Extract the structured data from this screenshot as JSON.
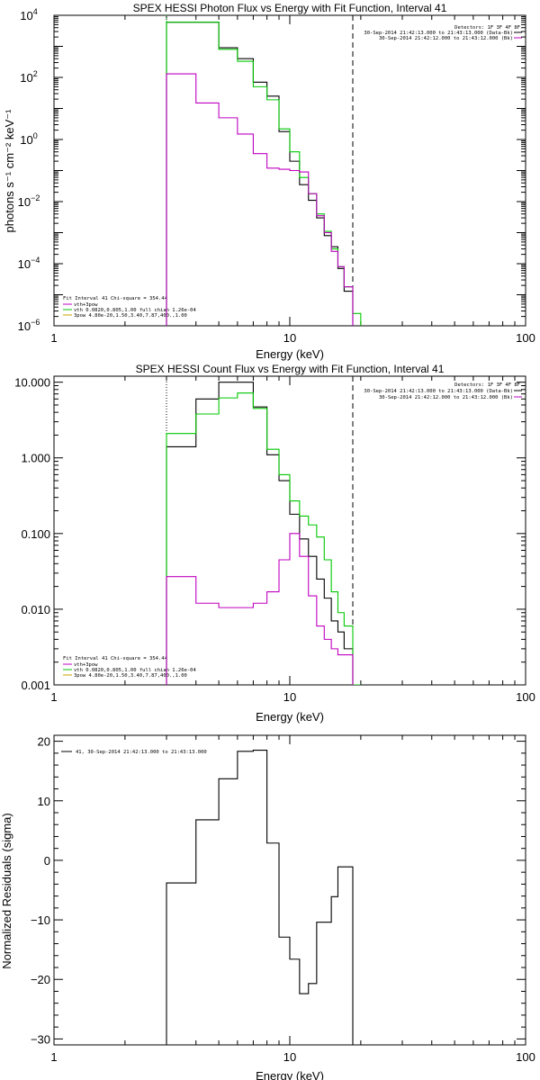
{
  "chart_data": [
    {
      "type": "line",
      "title": "SPEX HESSI Photon Flux vs Energy with Fit Function, Interval 41",
      "xlabel": "Energy (keV)",
      "ylabel": "photons s⁻¹ cm⁻² keV⁻¹",
      "xscale": "log",
      "yscale": "log",
      "xlim": [
        1,
        100
      ],
      "ylim": [
        1e-06,
        10000.0
      ],
      "x_ticks": [
        {
          "v": 1,
          "label": "1"
        },
        {
          "v": 10,
          "label": "10"
        },
        {
          "v": 100,
          "label": "100"
        }
      ],
      "y_ticks": [
        {
          "v": 1e-06,
          "base": "10",
          "exp": "−6"
        },
        {
          "v": 0.0001,
          "base": "10",
          "exp": "−4"
        },
        {
          "v": 0.01,
          "base": "10",
          "exp": "−2"
        },
        {
          "v": 1,
          "base": "10",
          "exp": "0"
        },
        {
          "v": 100.0,
          "base": "10",
          "exp": "2"
        },
        {
          "v": 10000.0,
          "base": "10",
          "exp": "4"
        }
      ],
      "legend_top": [
        "Detectors: 1F 3F 4F 8F",
        "30-Sep-2014 21:42:13.000 to 21:43:13.000 (Data-Bk)",
        "30-Sep-2014 21:42:12.000 to 21:43:12.000 (Bk)"
      ],
      "legend_bottom": [
        "Fit Interval 41   Chi-square = 354.44",
        "vth+3pow",
        "vth 0.0820,0.805,1.00  full chian 1.26e-04",
        "3pow 4.80e-20,1.50,3.40,7.87,400.,1.00"
      ],
      "vlines": [
        {
          "x": 3,
          "style": "dotted-green"
        },
        {
          "x": 18.5,
          "style": "dashed-black"
        }
      ],
      "series": [
        {
          "color": "#000000",
          "edges": [
            3,
            4,
            5,
            6,
            7,
            8,
            9,
            10,
            11,
            12,
            13,
            14,
            15,
            16,
            17,
            18.5
          ],
          "values": [
            6000,
            6000,
            900,
            400,
            70,
            25,
            1.8,
            0.2,
            0.035,
            0.011,
            0.003,
            0.0008,
            0.00035,
            7e-05,
            1.3e-05
          ]
        },
        {
          "color": "#00c800",
          "edges": [
            3,
            4,
            5,
            6,
            7,
            8,
            9,
            10,
            11,
            12,
            13,
            14,
            15,
            16,
            17,
            18.5,
            20
          ],
          "values": [
            6000,
            6000,
            800,
            330,
            50,
            19,
            2.2,
            0.4,
            0.06,
            0.018,
            0.004,
            0.0011,
            0.0003,
            8e-05,
            1.8e-05,
            2.5e-06
          ]
        },
        {
          "color": "#c000c0",
          "edges": [
            3,
            4,
            5,
            6,
            7,
            8,
            9,
            10,
            11,
            12,
            13,
            14,
            15,
            16,
            17,
            18.5
          ],
          "values": [
            130,
            15,
            5,
            1.5,
            0.35,
            0.12,
            0.11,
            0.1,
            0.09,
            0.018,
            0.0035,
            0.001,
            0.00025,
            8e-05,
            1.8e-05
          ]
        }
      ]
    },
    {
      "type": "line",
      "title": "SPEX HESSI Count Flux vs Energy with Fit Function, Interval 41",
      "xlabel": "Energy (keV)",
      "xscale": "log",
      "yscale": "log",
      "xlim": [
        1,
        100
      ],
      "ylim": [
        0.001,
        12
      ],
      "x_ticks": [
        {
          "v": 1,
          "label": "1"
        },
        {
          "v": 10,
          "label": "10"
        },
        {
          "v": 100,
          "label": "100"
        }
      ],
      "y_ticks": [
        {
          "v": 10,
          "label": "10.000"
        },
        {
          "v": 1,
          "label": "1.000"
        },
        {
          "v": 0.1,
          "label": "0.100"
        },
        {
          "v": 0.01,
          "label": "0.010"
        },
        {
          "v": 0.001,
          "label": "0.001"
        }
      ],
      "legend_top": [
        "Detectors: 1F 3F 4F 8F",
        "30-Sep-2014 21:42:13.000 to 21:43:13.000 (Data-Bk)",
        "30-Sep-2014 21:42:12.000 to 21:43:12.000 (Bk)"
      ],
      "legend_bottom": [
        "Fit Interval 41   Chi-square = 354.44",
        "vth+3pow",
        "vth 0.0820,0.805,1.00  full chian 1.26e-04",
        "3pow 4.80e-20,1.50,3.40,7.87,400.,1.00"
      ],
      "vlines": [
        {
          "x": 3,
          "style": "dotted-black"
        },
        {
          "x": 18.5,
          "style": "dashed-black"
        }
      ],
      "series": [
        {
          "color": "#000000",
          "edges": [
            3,
            4,
            5,
            6,
            7,
            8,
            9,
            10,
            11,
            12,
            13,
            14,
            15,
            16,
            17,
            18.5
          ],
          "values": [
            1.4,
            6.0,
            10.0,
            10.0,
            4.7,
            1.1,
            0.5,
            0.18,
            0.085,
            0.05,
            0.025,
            0.014,
            0.007,
            0.005,
            0.003
          ]
        },
        {
          "color": "#00c800",
          "edges": [
            3,
            4,
            5,
            6,
            7,
            8,
            9,
            10,
            11,
            12,
            13,
            14,
            15,
            16,
            17,
            18.5,
            20
          ],
          "values": [
            2.1,
            3.8,
            6.2,
            7.2,
            4.5,
            1.3,
            0.6,
            0.27,
            0.17,
            0.13,
            0.09,
            0.045,
            0.017,
            0.009,
            0.006,
            0.0008
          ]
        },
        {
          "color": "#c000c0",
          "edges": [
            3,
            4,
            5,
            6,
            7,
            8,
            9,
            10,
            11,
            12,
            13,
            14,
            15,
            16,
            17,
            18.5
          ],
          "values": [
            0.027,
            0.012,
            0.0105,
            0.0105,
            0.012,
            0.017,
            0.045,
            0.1,
            0.05,
            0.015,
            0.006,
            0.004,
            0.003,
            0.0025,
            0.0025
          ]
        }
      ]
    },
    {
      "type": "line",
      "xlabel": "Energy (keV)",
      "ylabel": "Normalized Residuals (sigma)",
      "xscale": "log",
      "yscale": "linear",
      "xlim": [
        1,
        100
      ],
      "ylim": [
        -31,
        21
      ],
      "x_ticks": [
        {
          "v": 1,
          "label": "1"
        },
        {
          "v": 10,
          "label": "10"
        },
        {
          "v": 100,
          "label": "100"
        }
      ],
      "y_ticks": [
        {
          "v": 20,
          "label": "20"
        },
        {
          "v": 10,
          "label": "10"
        },
        {
          "v": 0,
          "label": "0"
        },
        {
          "v": -10,
          "label": "−10"
        },
        {
          "v": -20,
          "label": "−20"
        },
        {
          "v": -30,
          "label": "−30"
        }
      ],
      "legend": [
        "41, 30-Sep-2014 21:42:13.000 to 21:43:13.000"
      ],
      "series": [
        {
          "color": "#000000",
          "edges": [
            3,
            4,
            5,
            6,
            7,
            8,
            9,
            10,
            11,
            12,
            13,
            14,
            15,
            16,
            17,
            18.5
          ],
          "values": [
            -3.8,
            6.8,
            13.7,
            18.3,
            18.5,
            2.9,
            -12.9,
            -16.6,
            -22.4,
            -20.7,
            -10.4,
            -10.4,
            -6.1,
            -1.1,
            -1.1
          ]
        }
      ]
    }
  ]
}
